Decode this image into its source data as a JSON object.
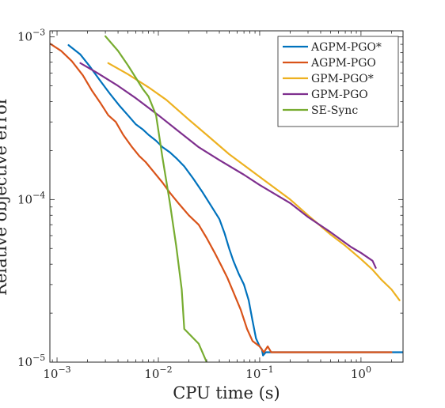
{
  "chart_data": {
    "type": "line",
    "title": "",
    "xlabel": "CPU time (s)",
    "ylabel": "Relative objective error",
    "x_scale": "log",
    "y_scale": "log",
    "xlim": [
      0.00085,
      2.6
    ],
    "ylim": [
      1e-05,
      0.00109
    ],
    "grid": false,
    "legend_position": "top-right",
    "x_ticks": [
      {
        "value": 0.001,
        "base": "10",
        "exp": "−3"
      },
      {
        "value": 0.01,
        "base": "10",
        "exp": "−2"
      },
      {
        "value": 0.1,
        "base": "10",
        "exp": "−1"
      },
      {
        "value": 1,
        "base": "10",
        "exp": "0"
      }
    ],
    "y_ticks": [
      {
        "value": 1e-05,
        "base": "10",
        "exp": "−5"
      },
      {
        "value": 0.0001,
        "base": "10",
        "exp": "−4"
      },
      {
        "value": 0.001,
        "base": "10",
        "exp": "−3"
      }
    ],
    "series": [
      {
        "name": "AGPM-PGO*",
        "color": "#0072BD",
        "points": [
          [
            0.0013,
            0.00089
          ],
          [
            0.0017,
            0.00078
          ],
          [
            0.0021,
            0.00066
          ],
          [
            0.0026,
            0.00055
          ],
          [
            0.0033,
            0.00045
          ],
          [
            0.0041,
            0.00038
          ],
          [
            0.005,
            0.00033
          ],
          [
            0.006,
            0.00029
          ],
          [
            0.007,
            0.00027
          ],
          [
            0.008,
            0.00025
          ],
          [
            0.0095,
            0.00023
          ],
          [
            0.011,
            0.00021
          ],
          [
            0.013,
            0.000195
          ],
          [
            0.015,
            0.00018
          ],
          [
            0.018,
            0.00016
          ],
          [
            0.022,
            0.000135
          ],
          [
            0.027,
            0.000112
          ],
          [
            0.033,
            9.2e-05
          ],
          [
            0.04,
            7.6e-05
          ],
          [
            0.045,
            6.2e-05
          ],
          [
            0.05,
            5e-05
          ],
          [
            0.055,
            4.2e-05
          ],
          [
            0.062,
            3.5e-05
          ],
          [
            0.07,
            3e-05
          ],
          [
            0.078,
            2.4e-05
          ],
          [
            0.085,
            1.8e-05
          ],
          [
            0.092,
            1.4e-05
          ],
          [
            0.1,
            1.25e-05
          ],
          [
            0.105,
            1.2e-05
          ],
          [
            0.108,
            1.1e-05
          ],
          [
            0.115,
            1.15e-05
          ],
          [
            2.6,
            1.15e-05
          ]
        ]
      },
      {
        "name": "AGPM-PGO",
        "color": "#D95319",
        "points": [
          [
            0.00085,
            0.00091
          ],
          [
            0.0011,
            0.00082
          ],
          [
            0.0014,
            0.00071
          ],
          [
            0.0018,
            0.00058
          ],
          [
            0.0022,
            0.00047
          ],
          [
            0.0027,
            0.00039
          ],
          [
            0.0032,
            0.00033
          ],
          [
            0.0038,
            0.0003
          ],
          [
            0.0045,
            0.00025
          ],
          [
            0.0055,
            0.00021
          ],
          [
            0.0065,
            0.000185
          ],
          [
            0.0075,
            0.00017
          ],
          [
            0.009,
            0.000148
          ],
          [
            0.011,
            0.000127
          ],
          [
            0.013,
            0.00011
          ],
          [
            0.016,
            9.4e-05
          ],
          [
            0.02,
            8e-05
          ],
          [
            0.025,
            7e-05
          ],
          [
            0.03,
            5.8e-05
          ],
          [
            0.036,
            4.7e-05
          ],
          [
            0.042,
            3.9e-05
          ],
          [
            0.048,
            3.3e-05
          ],
          [
            0.055,
            2.7e-05
          ],
          [
            0.065,
            2.1e-05
          ],
          [
            0.075,
            1.6e-05
          ],
          [
            0.085,
            1.35e-05
          ],
          [
            0.1,
            1.25e-05
          ],
          [
            0.11,
            1.15e-05
          ],
          [
            0.12,
            1.25e-05
          ],
          [
            0.13,
            1.15e-05
          ],
          [
            2.0,
            1.15e-05
          ]
        ]
      },
      {
        "name": "GPM-PGO*",
        "color": "#EDB120",
        "points": [
          [
            0.0032,
            0.00069
          ],
          [
            0.005,
            0.00059
          ],
          [
            0.008,
            0.00049
          ],
          [
            0.012,
            0.00041
          ],
          [
            0.02,
            0.00031
          ],
          [
            0.03,
            0.00025
          ],
          [
            0.05,
            0.00019
          ],
          [
            0.1,
            0.000138
          ],
          [
            0.2,
            0.0001
          ],
          [
            0.3,
            8e-05
          ],
          [
            0.5,
            6.1e-05
          ],
          [
            0.7,
            5.2e-05
          ],
          [
            1.0,
            4.3e-05
          ],
          [
            1.3,
            3.7e-05
          ],
          [
            1.6,
            3.2e-05
          ],
          [
            2.0,
            2.8e-05
          ],
          [
            2.4,
            2.4e-05
          ]
        ]
      },
      {
        "name": "GPM-PGO",
        "color": "#7E2F8E",
        "points": [
          [
            0.0017,
            0.00069
          ],
          [
            0.0025,
            0.0006
          ],
          [
            0.004,
            0.0005
          ],
          [
            0.006,
            0.00042
          ],
          [
            0.01,
            0.00033
          ],
          [
            0.015,
            0.00027
          ],
          [
            0.025,
            0.00021
          ],
          [
            0.04,
            0.000175
          ],
          [
            0.07,
            0.000142
          ],
          [
            0.1,
            0.000123
          ],
          [
            0.2,
            9.5e-05
          ],
          [
            0.3,
            7.8e-05
          ],
          [
            0.5,
            6.3e-05
          ],
          [
            0.8,
            5.1e-05
          ],
          [
            1.0,
            4.7e-05
          ],
          [
            1.3,
            4.2e-05
          ],
          [
            1.4,
            3.8e-05
          ]
        ]
      },
      {
        "name": "SE-Sync",
        "color": "#77AC30",
        "points": [
          [
            0.003,
            0.00101
          ],
          [
            0.004,
            0.00082
          ],
          [
            0.005,
            0.00067
          ],
          [
            0.006,
            0.00056
          ],
          [
            0.007,
            0.00048
          ],
          [
            0.008,
            0.00043
          ],
          [
            0.0095,
            0.00033
          ],
          [
            0.011,
            0.00018
          ],
          [
            0.013,
            9.5e-05
          ],
          [
            0.015,
            5.2e-05
          ],
          [
            0.017,
            2.8e-05
          ],
          [
            0.018,
            1.6e-05
          ],
          [
            0.025,
            1.3e-05
          ],
          [
            0.03,
            1e-05
          ]
        ]
      }
    ]
  }
}
